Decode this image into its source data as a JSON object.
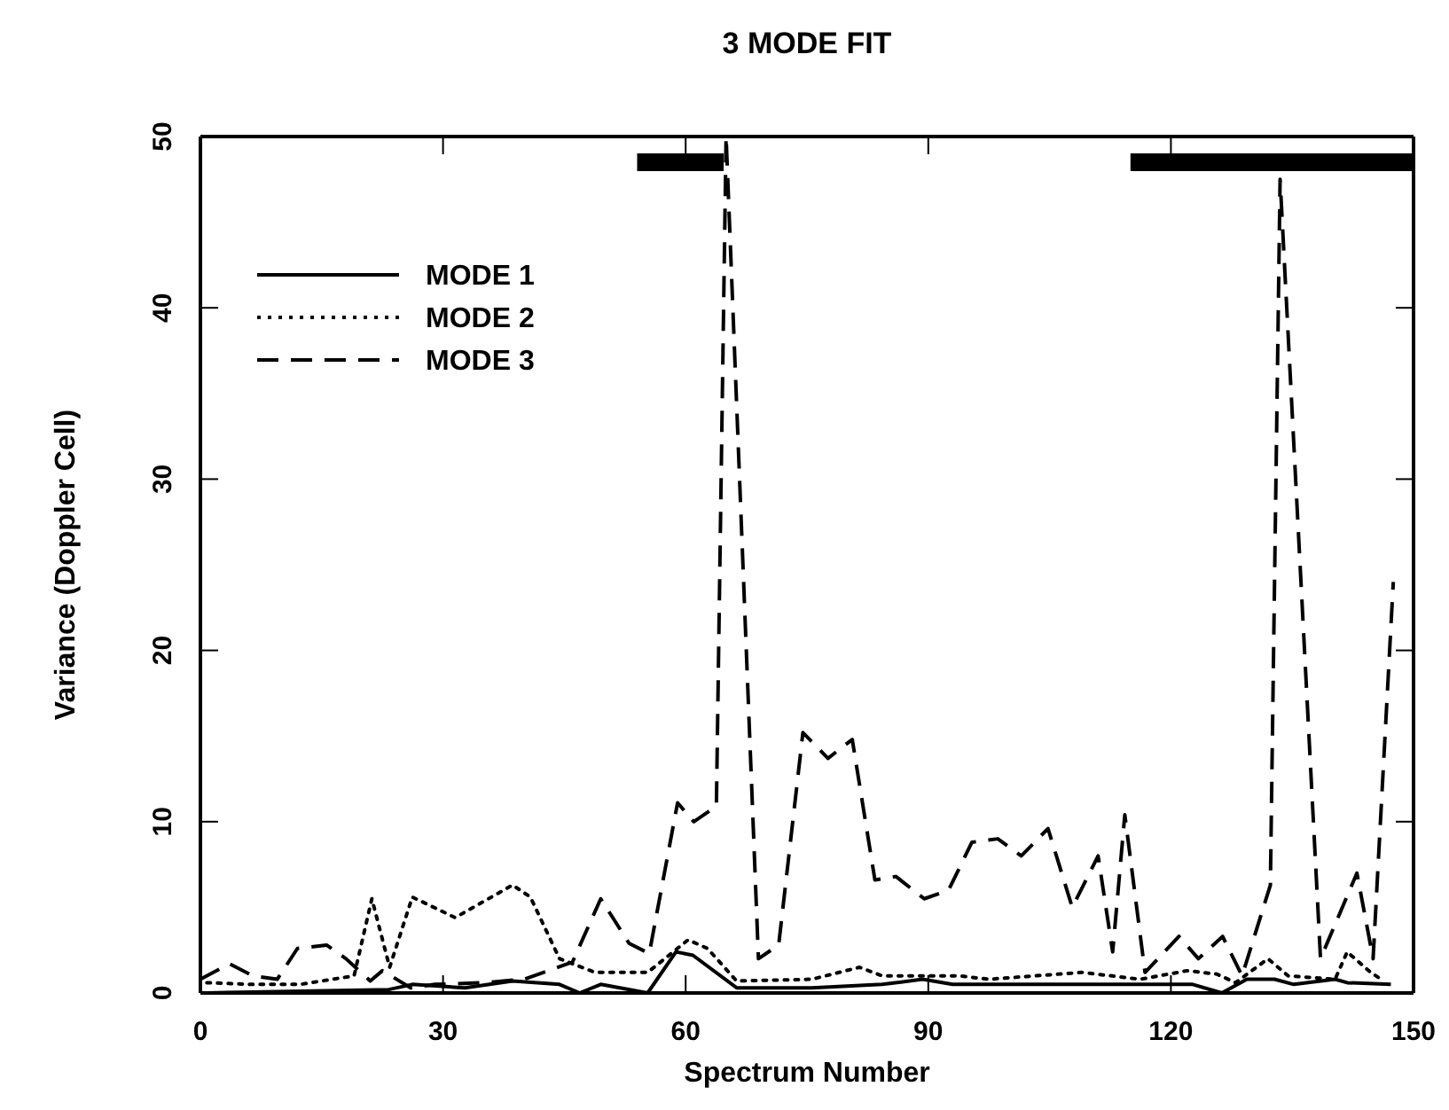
{
  "chart_data": {
    "type": "line",
    "title": "3 MODE FIT",
    "xlabel": "Spectrum Number",
    "ylabel": "Variance (Doppler Cell)",
    "xlim": [
      0,
      150
    ],
    "xticks": [
      0,
      30,
      60,
      90,
      120,
      150
    ],
    "ylim": [
      0,
      50
    ],
    "yticks": [
      0,
      10,
      20,
      30,
      40,
      50
    ],
    "grid": false,
    "legend": "top left",
    "marker": "none",
    "series": [
      {
        "color": "#000000",
        "line_style": "solid",
        "x": [
          54,
          64.7,
          90,
          115,
          150
        ],
        "values": [
          48.5,
          48.5,
          null,
          48.5,
          48.5
        ]
      },
      {
        "name": "MODE 1",
        "color": "#000000",
        "line_style": "solid",
        "x": [
          0.8,
          23.3,
          26.2,
          32.7,
          38.6,
          44.4,
          46.9,
          49.5,
          55.3,
          58.8,
          60.9,
          66.3,
          75.6,
          84.3,
          89.3,
          93,
          114.8,
          122.7,
          126.3,
          129.4,
          132.8,
          135.2,
          140.3,
          141.8,
          147.2
        ],
        "values": [
          0,
          0.2,
          0.5,
          0.3,
          0.7,
          0.5,
          0,
          0.5,
          0,
          2.4,
          2.2,
          0.3,
          0.3,
          0.5,
          0.8,
          0.5,
          0.5,
          0.5,
          0,
          0.8,
          0.8,
          0.5,
          0.8,
          0.6,
          0.5
        ]
      },
      {
        "name": "MODE 2",
        "color": "#000000",
        "line_style": "dotted",
        "x": [
          0.8,
          6.5,
          12.3,
          19,
          21.2,
          23.4,
          26.2,
          31.5,
          38.6,
          40.8,
          44.4,
          48.8,
          55.3,
          60.3,
          62.7,
          66.3,
          75.6,
          81.5,
          84.3,
          93.8,
          97.5,
          109,
          116.2,
          122,
          125.7,
          128,
          132,
          134.5,
          140.3,
          141.8,
          144.7,
          146
        ],
        "values": [
          0.6,
          0.5,
          0.5,
          1.0,
          5.5,
          1.5,
          5.6,
          4.4,
          6.3,
          5.6,
          2.0,
          1.2,
          1.2,
          3.1,
          2.6,
          0.7,
          0.8,
          1.5,
          1.0,
          1.0,
          0.8,
          1.2,
          0.8,
          1.3,
          1.1,
          0.6,
          2.0,
          1.0,
          0.8,
          2.4,
          1.2,
          0.8
        ]
      },
      {
        "name": "MODE 3",
        "color": "#000000",
        "line_style": "dashed",
        "x": [
          0,
          3.6,
          6.5,
          9.5,
          12,
          15.6,
          18,
          21,
          22.5,
          26,
          29,
          35,
          40,
          46,
          49.5,
          53,
          55.5,
          59,
          61,
          63.8,
          65,
          69,
          71.5,
          74.5,
          77.6,
          80.6,
          83.4,
          86,
          89.5,
          92.5,
          95.4,
          98.6,
          101.5,
          104.8,
          107.8,
          111,
          112.8,
          114.3,
          116.8,
          121,
          123.4,
          126.4,
          128.8,
          132.3,
          133.5,
          138.5,
          143,
          145,
          147.5
        ],
        "values": [
          0.8,
          1.7,
          1.0,
          0.8,
          2.6,
          2.8,
          2.0,
          0.7,
          1.3,
          0.3,
          0.5,
          0.6,
          0.8,
          1.8,
          5.5,
          2.9,
          2.3,
          11.1,
          10.0,
          10.9,
          50,
          2.0,
          2.8,
          15.2,
          13.7,
          14.8,
          6.6,
          6.8,
          5.5,
          6.0,
          8.8,
          9.0,
          8.0,
          9.6,
          5.0,
          8.0,
          2.4,
          10.4,
          1.2,
          3.3,
          2.0,
          3.3,
          1.0,
          6.3,
          47.5,
          2.0,
          7.0,
          2.0,
          24.0
        ]
      }
    ]
  }
}
